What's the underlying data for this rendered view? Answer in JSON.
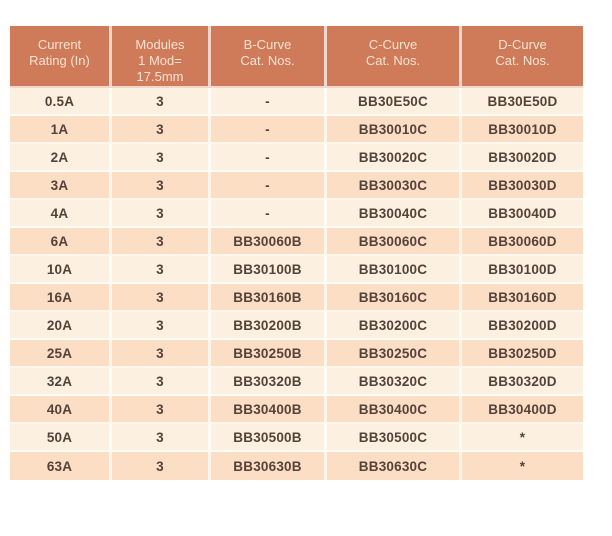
{
  "colors": {
    "page_bg": "#ffffff",
    "header_bg": "#cf7b5a",
    "header_text": "#f6e3d3",
    "row_light": "#fcf0e1",
    "row_dark": "#fbdec4",
    "body_text": "#55423a",
    "separator": "rgba(255,255,255,0.7)"
  },
  "table": {
    "headers": [
      "Current\nRating (In)",
      "Modules\n1 Mod=\n17.5mm",
      "B-Curve\nCat. Nos.",
      "C-Curve\nCat. Nos.",
      "D-Curve\nCat. Nos."
    ],
    "rows": [
      [
        "0.5A",
        "3",
        "-",
        "BB30E50C",
        "BB30E50D"
      ],
      [
        "1A",
        "3",
        "-",
        "BB30010C",
        "BB30010D"
      ],
      [
        "2A",
        "3",
        "-",
        "BB30020C",
        "BB30020D"
      ],
      [
        "3A",
        "3",
        "-",
        "BB30030C",
        "BB30030D"
      ],
      [
        "4A",
        "3",
        "-",
        "BB30040C",
        "BB30040D"
      ],
      [
        "6A",
        "3",
        "BB30060B",
        "BB30060C",
        "BB30060D"
      ],
      [
        "10A",
        "3",
        "BB30100B",
        "BB30100C",
        "BB30100D"
      ],
      [
        "16A",
        "3",
        "BB30160B",
        "BB30160C",
        "BB30160D"
      ],
      [
        "20A",
        "3",
        "BB30200B",
        "BB30200C",
        "BB30200D"
      ],
      [
        "25A",
        "3",
        "BB30250B",
        "BB30250C",
        "BB30250D"
      ],
      [
        "32A",
        "3",
        "BB30320B",
        "BB30320C",
        "BB30320D"
      ],
      [
        "40A",
        "3",
        "BB30400B",
        "BB30400C",
        "BB30400D"
      ],
      [
        "50A",
        "3",
        "BB30500B",
        "BB30500C",
        "*"
      ],
      [
        "63A",
        "3",
        "BB30630B",
        "BB30630C",
        "*"
      ]
    ]
  }
}
